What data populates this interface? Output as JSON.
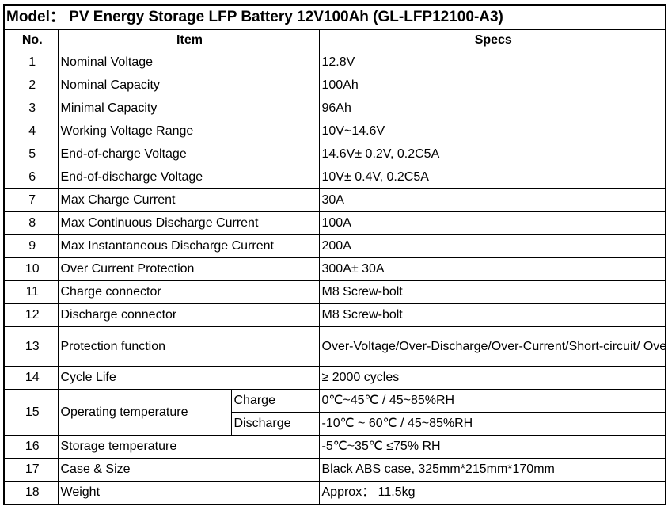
{
  "title": "Model： PV Energy Storage LFP Battery 12V100Ah   (GL-LFP12100-A3)",
  "headers": {
    "no": "No.",
    "item": "Item",
    "specs": "Specs"
  },
  "rows": [
    {
      "no": "1",
      "item": "Nominal Voltage",
      "spec": "12.8V"
    },
    {
      "no": "2",
      "item": "Nominal Capacity",
      "spec": "100Ah"
    },
    {
      "no": "3",
      "item": "Minimal Capacity",
      "spec": "96Ah"
    },
    {
      "no": "4",
      "item": "Working Voltage Range",
      "spec": "10V~14.6V"
    },
    {
      "no": "5",
      "item": "End-of-charge Voltage",
      "spec": "14.6V± 0.2V, 0.2C5A"
    },
    {
      "no": "6",
      "item": "End-of-discharge Voltage",
      "spec": "10V± 0.4V, 0.2C5A"
    },
    {
      "no": "7",
      "item": "Max Charge Current",
      "spec": "30A"
    },
    {
      "no": "8",
      "item": "Max Continuous Discharge Current",
      "spec": "100A"
    },
    {
      "no": "9",
      "item": "Max Instantaneous Discharge Current",
      "spec": "200A"
    },
    {
      "no": "10",
      "item": "Over Current Protection",
      "spec": "300A± 30A"
    },
    {
      "no": "11",
      "item": "Charge connector",
      "spec": "M8 Screw-bolt"
    },
    {
      "no": "12",
      "item": "Discharge connector",
      "spec": "M8 Screw-bolt"
    },
    {
      "no": "13",
      "item": "Protection function",
      "spec": "Over-Voltage/Over-Discharge/Over-Current/Short-circuit/ Over-heat/Over-load Protection etc."
    },
    {
      "no": "14",
      "item": "Cycle Life",
      "spec": "≥ 2000 cycles"
    }
  ],
  "operating": {
    "no": "15",
    "item": "Operating temperature",
    "charge_label": "Charge",
    "charge_spec": "0℃~45℃ / 45~85%RH",
    "discharge_label": "Discharge",
    "discharge_spec": "-10℃ ~ 60℃ / 45~85%RH"
  },
  "tail_rows": [
    {
      "no": "16",
      "item": "Storage temperature",
      "spec": "-5℃~35℃ ≤75% RH"
    },
    {
      "no": "17",
      "item": "Case & Size",
      "spec": "Black ABS case, 325mm*215mm*170mm"
    },
    {
      "no": "18",
      "item": "Weight",
      "spec": "Approx： 11.5kg"
    }
  ]
}
